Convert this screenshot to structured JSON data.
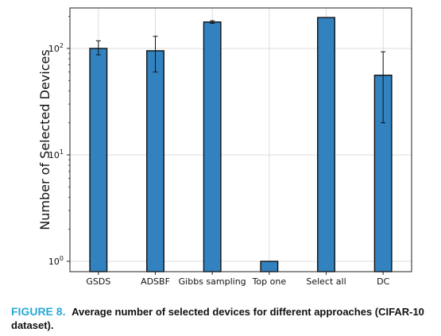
{
  "figure": {
    "label": "FIGURE 8.",
    "caption": "Average number of selected devices for different approaches (CIFAR-10 dataset)."
  },
  "colors": {
    "bar_fill": "#3282c0",
    "bar_edge": "#111111",
    "grid": "#dcdcdc",
    "caption_label": "#29a8d8"
  },
  "chart_data": {
    "type": "bar",
    "title": "",
    "xlabel": "",
    "ylabel": "Number of Selected Devices",
    "yscale": "log",
    "ylim": [
      0.8,
      240
    ],
    "grid": true,
    "categories": [
      "GSDS",
      "ADSBF",
      "Gibbs sampling",
      "Top one",
      "Select all",
      "DC"
    ],
    "values": [
      100,
      95,
      177,
      1,
      195,
      56
    ],
    "error_low": [
      87,
      60,
      172,
      1,
      195,
      20
    ],
    "error_high": [
      118,
      130,
      182,
      1,
      195,
      93
    ],
    "yticks": [
      {
        "value": 1,
        "base": "10",
        "exp": "0"
      },
      {
        "value": 10,
        "base": "10",
        "exp": "1"
      },
      {
        "value": 100,
        "base": "10",
        "exp": "2"
      }
    ]
  }
}
